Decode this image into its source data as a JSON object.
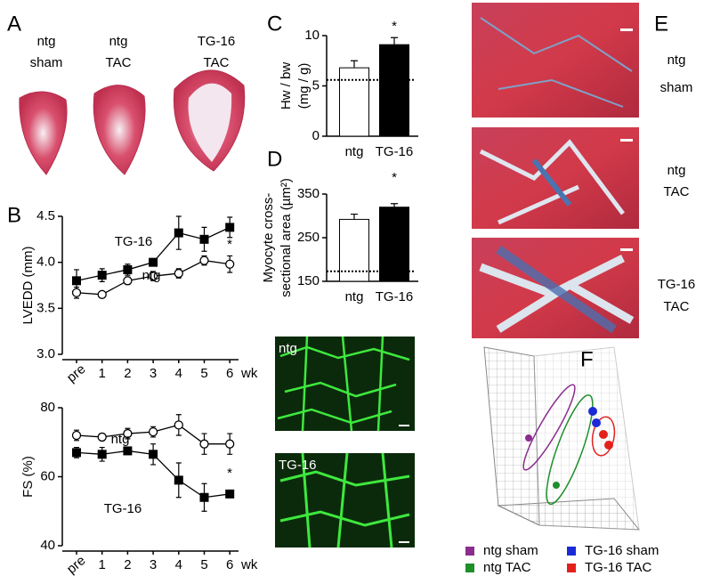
{
  "panels": {
    "letters": [
      "A",
      "B",
      "C",
      "D",
      "E",
      "F"
    ],
    "a_labels": [
      [
        "ntg",
        "sham"
      ],
      [
        "ntg",
        "TAC"
      ],
      [
        "TG-16",
        "TAC"
      ]
    ],
    "fluor_labels": [
      "ntg",
      "TG-16"
    ],
    "e_labels": [
      [
        "ntg",
        "sham"
      ],
      [
        "ntg",
        "TAC"
      ],
      [
        "TG-16",
        "TAC"
      ]
    ],
    "f_legend": [
      {
        "name": "ntg sham",
        "color": "#8b2c8f"
      },
      {
        "name": "ntg TAC",
        "color": "#1f8f2a"
      },
      {
        "name": "TG-16 sham",
        "color": "#1a2bd6"
      },
      {
        "name": "TG-16 TAC",
        "color": "#e3211c"
      }
    ]
  },
  "chart_data": [
    {
      "type": "line",
      "y_label": "LVEDD (mm)",
      "x_label": "wk",
      "categories": [
        "pre",
        "1",
        "2",
        "3",
        "4",
        "5",
        "6"
      ],
      "ylim": [
        3.0,
        4.5
      ],
      "yticks": [
        {
          "value": 3.0,
          "label": "3.0"
        },
        {
          "value": 3.5,
          "label": "3.5"
        },
        {
          "value": 4.0,
          "label": "4.0"
        },
        {
          "value": 4.5,
          "label": "4.5"
        }
      ],
      "series": [
        {
          "name": "TG-16",
          "color": "#000000",
          "fill": "#000000",
          "marker": "square",
          "values": [
            3.8,
            3.86,
            3.92,
            4.0,
            4.32,
            4.25,
            4.38
          ],
          "errors": [
            0.12,
            0.07,
            0.06,
            0.04,
            0.18,
            0.13,
            0.11
          ]
        },
        {
          "name": "ntg",
          "color": "#000000",
          "fill": "#ffffff",
          "marker": "circle",
          "values": [
            3.67,
            3.65,
            3.8,
            3.85,
            3.88,
            4.02,
            3.98
          ],
          "errors": [
            0.06,
            0.03,
            0.04,
            0.05,
            0.05,
            0.05,
            0.09
          ]
        }
      ],
      "annotations": [
        "*"
      ]
    },
    {
      "type": "line",
      "y_label": "FS (%)",
      "x_label": "wk",
      "categories": [
        "pre",
        "1",
        "2",
        "3",
        "4",
        "5",
        "6"
      ],
      "ylim": [
        40,
        80
      ],
      "yticks": [
        40,
        60,
        80
      ],
      "series": [
        {
          "name": "ntg",
          "color": "#000000",
          "fill": "#ffffff",
          "marker": "circle",
          "values": [
            72,
            71.5,
            72.5,
            73,
            75,
            69.5,
            69.5
          ],
          "errors": [
            1.5,
            1,
            1.5,
            1.5,
            3,
            3,
            3
          ]
        },
        {
          "name": "TG-16",
          "color": "#000000",
          "fill": "#000000",
          "marker": "square",
          "values": [
            67,
            66.5,
            67.5,
            66.5,
            59,
            54,
            55
          ],
          "errors": [
            1.5,
            2,
            0.5,
            3,
            5,
            4,
            1
          ]
        }
      ],
      "annotations": [
        "*"
      ]
    },
    {
      "type": "bar",
      "y_label": [
        "Hw / bw",
        "(mg / g)"
      ],
      "categories": [
        "ntg",
        "TG-16"
      ],
      "values": [
        6.8,
        9.1
      ],
      "errors": [
        0.7,
        0.7
      ],
      "colors": [
        "#ffffff",
        "#000000"
      ],
      "baseline": 5.6,
      "ylim": [
        0,
        10
      ],
      "yticks": [
        0,
        5,
        10
      ],
      "annotations": [
        "*"
      ]
    },
    {
      "type": "bar",
      "y_label": [
        "Myocyte cross-",
        "sectional area (µm²)"
      ],
      "categories": [
        "ntg",
        "TG-16"
      ],
      "values": [
        292,
        320
      ],
      "errors": [
        12,
        8
      ],
      "colors": [
        "#ffffff",
        "#000000"
      ],
      "baseline": 173,
      "ylim": [
        150,
        350
      ],
      "yticks": [
        150,
        250,
        350
      ],
      "annotations": [
        "*"
      ]
    }
  ]
}
